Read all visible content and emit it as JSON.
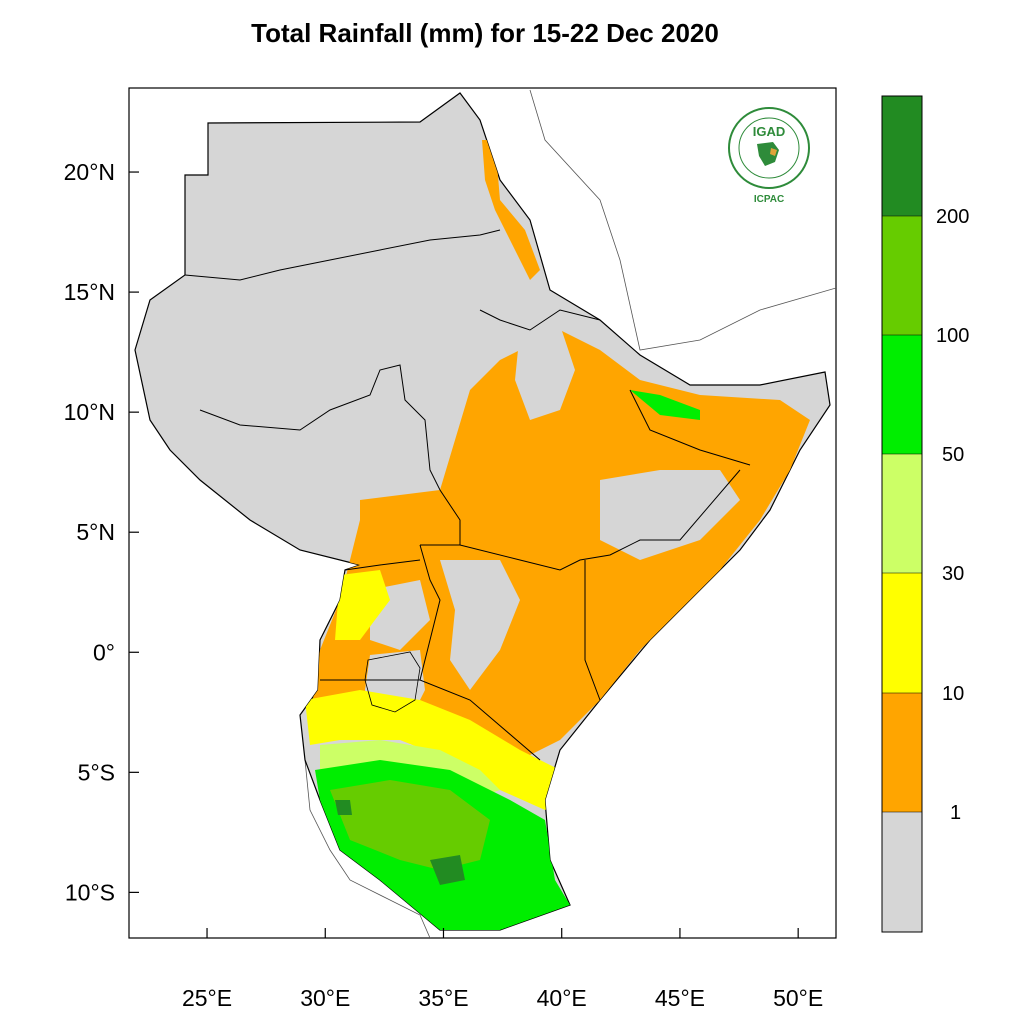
{
  "title": "Total Rainfall (mm) for 15-22 Dec 2020",
  "colors": {
    "no_rain": "#d6d6d6",
    "r1_10": "#ffa500",
    "r10_30": "#ffff00",
    "r30_50": "#ccff66",
    "r50_100": "#00ee00",
    "r100_200": "#66cc00",
    "r200_plus": "#228b22",
    "border": "#000000",
    "logo_green": "#2e8b3a"
  },
  "map": {
    "lon_ticks": [
      "25°E",
      "30°E",
      "35°E",
      "40°E",
      "45°E",
      "50°E"
    ],
    "lat_ticks": [
      "20°N",
      "15°N",
      "10°N",
      "5°N",
      "0°",
      "5°S",
      "10°S"
    ],
    "lon_values": [
      25,
      30,
      35,
      40,
      45,
      50
    ],
    "lat_values": [
      20,
      15,
      10,
      5,
      0,
      -5,
      -10
    ],
    "lon_range": [
      21.7,
      51.6
    ],
    "lat_range": [
      -11.9,
      23.5
    ]
  },
  "colorbar": {
    "labels": [
      "200",
      "100",
      "50",
      "30",
      "10",
      "1"
    ],
    "bins": [
      "200+",
      "100-200",
      "50-100",
      "30-50",
      "10-30",
      "1-10",
      "<1"
    ]
  },
  "logo": {
    "acronym": "IGAD",
    "org": "ICPAC"
  }
}
